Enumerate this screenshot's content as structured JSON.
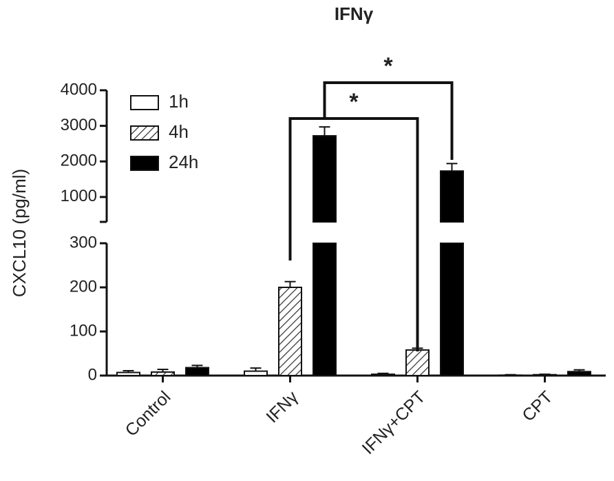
{
  "chart_data": {
    "type": "bar",
    "title": "IFNγ",
    "y_label": "CXCL10 (pg/ml)",
    "categories": [
      "Control",
      "IFNγ",
      "IFNγ+CPT",
      "CPT"
    ],
    "series": [
      {
        "name": "1h",
        "color": "#ffffff",
        "hatch": false,
        "values": [
          7,
          10,
          3,
          1
        ],
        "errors": [
          4,
          7,
          2,
          1
        ]
      },
      {
        "name": "4h",
        "color": "#ffffff",
        "hatch": true,
        "values": [
          8,
          200,
          58,
          2
        ],
        "errors": [
          6,
          13,
          4,
          1
        ]
      },
      {
        "name": "24h",
        "color": "#000000",
        "hatch": false,
        "values": [
          18,
          2720,
          1730,
          9
        ],
        "errors": [
          5,
          250,
          210,
          4
        ]
      }
    ],
    "ylim_lower": [
      0,
      300
    ],
    "yticks_lower": [
      0,
      100,
      200,
      300
    ],
    "ylim_upper": [
      300,
      4000
    ],
    "yticks_upper": [
      1000,
      2000,
      3000,
      4000
    ],
    "annotations": [
      "*",
      "*"
    ]
  }
}
